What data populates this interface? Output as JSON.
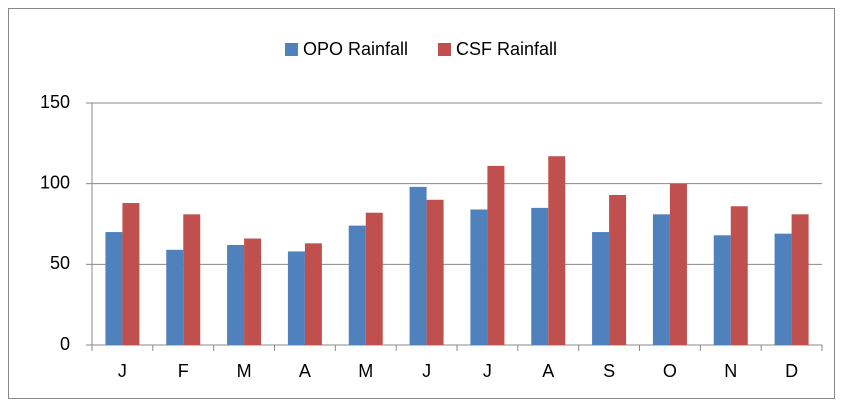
{
  "chart_data": {
    "type": "bar",
    "categories": [
      "J",
      "F",
      "M",
      "A",
      "M",
      "J",
      "J",
      "A",
      "S",
      "O",
      "N",
      "D"
    ],
    "series": [
      {
        "name": "OPO Rainfall",
        "color": "#4f81bd",
        "values": [
          70,
          59,
          62,
          58,
          74,
          98,
          84,
          85,
          70,
          81,
          68,
          69
        ]
      },
      {
        "name": "CSF Rainfall",
        "color": "#c0504d",
        "values": [
          88,
          81,
          66,
          63,
          82,
          90,
          111,
          117,
          93,
          100,
          86,
          81
        ]
      }
    ],
    "ylim": [
      0,
      150
    ],
    "yticks": [
      0,
      50,
      100,
      150
    ],
    "grid": true,
    "legend": "top"
  }
}
